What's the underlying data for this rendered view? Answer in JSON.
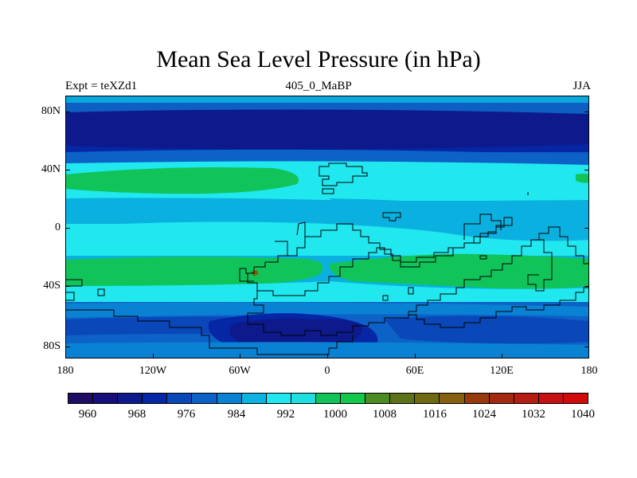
{
  "title": "Mean Sea Level Pressure (in hPa)",
  "subtitle_left": "Expt = teXZd1",
  "subtitle_center": "405_0_MaBP",
  "subtitle_right": "JJA",
  "lat_labels": [
    "80N",
    "40N",
    "0",
    "40S",
    "80S"
  ],
  "lon_labels": [
    "180",
    "120W",
    "60W",
    "0",
    "60E",
    "120E",
    "180"
  ],
  "colorbar": {
    "colors": [
      "#1f0d63",
      "#170f79",
      "#0e1a8c",
      "#0526a5",
      "#0a47b8",
      "#0d62c7",
      "#0a82d4",
      "#0bb3e0",
      "#21e7ef",
      "#1fe0e0",
      "#10c45a",
      "#12c94d",
      "#4c8b22",
      "#5d731a",
      "#6f6912",
      "#846010",
      "#963a0e",
      "#a32a10",
      "#b61c12",
      "#c80f13",
      "#d10a0c"
    ],
    "labels": [
      "960",
      "968",
      "976",
      "984",
      "992",
      "1000",
      "1008",
      "1016",
      "1024",
      "1032",
      "1040"
    ]
  }
}
